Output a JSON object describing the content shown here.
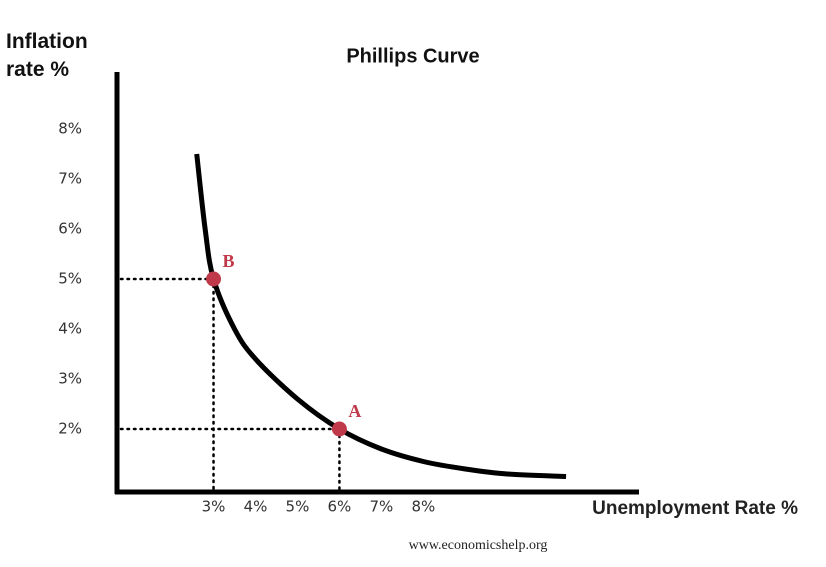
{
  "chart_data": {
    "type": "line",
    "title": "Phillips Curve",
    "y_label": "Inflation rate %",
    "x_label": "Unemployment Rate %",
    "source": "www.economicshelp.org",
    "x": [
      2.6,
      2.8,
      3,
      3.5,
      4,
      5,
      6,
      7,
      8,
      9,
      10,
      11.4
    ],
    "series": [
      {
        "color": "#000000",
        "values": [
          7.5,
          6,
          5,
          4,
          3.4,
          2.6,
          2,
          1.6,
          1.35,
          1.2,
          1.1,
          1.05
        ]
      }
    ],
    "points": [
      {
        "label": "A",
        "x": 6,
        "y": 2,
        "color": "#c0394b"
      },
      {
        "label": "B",
        "x": 3,
        "y": 5,
        "color": "#c0394b"
      }
    ],
    "xlim": [
      0.7,
      12.9
    ],
    "ylim": [
      0.74,
      9.14
    ],
    "xticks": [
      {
        "value": 3,
        "label": "3%"
      },
      {
        "value": 4,
        "label": "4%"
      },
      {
        "value": 5,
        "label": "5%"
      },
      {
        "value": 6,
        "label": "6%"
      },
      {
        "value": 7,
        "label": "7%"
      },
      {
        "value": 8,
        "label": "8%"
      }
    ],
    "yticks": [
      {
        "value": 2,
        "label": "2%"
      },
      {
        "value": 3,
        "label": "3%"
      },
      {
        "value": 4,
        "label": "4%"
      },
      {
        "value": 5,
        "label": "5%"
      },
      {
        "value": 6,
        "label": "6%"
      },
      {
        "value": 7,
        "label": "7%"
      },
      {
        "value": 8,
        "label": "8%"
      }
    ],
    "grid": false
  }
}
